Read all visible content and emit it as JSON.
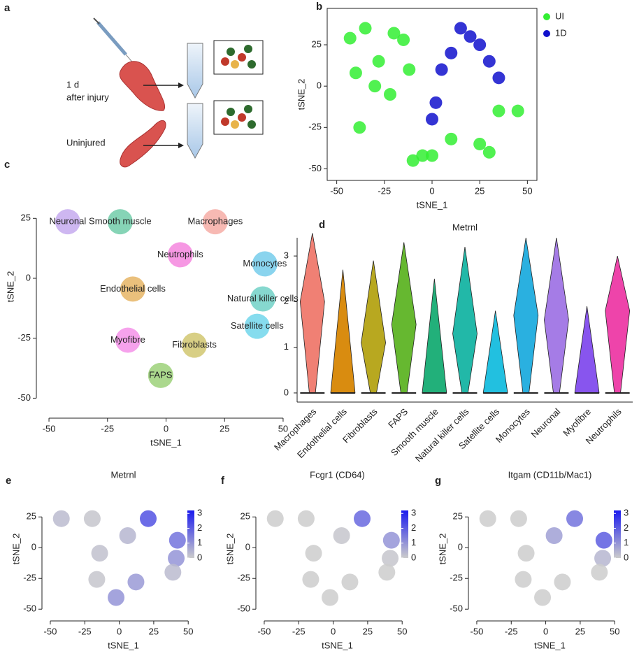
{
  "panel_a": {
    "label": "a",
    "injured_lines": [
      "1 d",
      "after injury"
    ],
    "uninjured": "Uninjured"
  },
  "chart_data": [
    {
      "type": "scatter",
      "panel": "b",
      "xlabel": "tSNE_1",
      "ylabel": "tSNE_2",
      "xlim": [
        -55,
        55
      ],
      "ylim": [
        -57,
        47
      ],
      "xticks": [
        -50,
        -25,
        0,
        25,
        50
      ],
      "yticks": [
        -50,
        -25,
        0,
        25
      ],
      "frame": true,
      "legend": "upper right",
      "series": [
        {
          "name": "UI",
          "color": "#33ee33",
          "x": [
            -40,
            -30,
            -22,
            -12,
            -35,
            -15,
            -43,
            -20,
            -5,
            0,
            10,
            25,
            -10,
            35,
            45,
            -38,
            30,
            -28
          ],
          "y": [
            8,
            0,
            -5,
            10,
            35,
            28,
            29,
            32,
            -42,
            -42,
            -32,
            -35,
            -45,
            -15,
            -15,
            -25,
            -40,
            15
          ]
        },
        {
          "name": "1D",
          "color": "#1010cc",
          "x": [
            15,
            25,
            30,
            10,
            0,
            35,
            5,
            20,
            2
          ],
          "y": [
            35,
            25,
            15,
            20,
            -20,
            5,
            10,
            30,
            -10
          ]
        }
      ]
    },
    {
      "type": "scatter",
      "panel": "c",
      "xlabel": "tSNE_1",
      "ylabel": "tSNE_2",
      "xlim": [
        -53,
        53
      ],
      "ylim": [
        -56,
        49
      ],
      "xticks": [
        -50,
        -25,
        0,
        25,
        50
      ],
      "yticks": [
        -50,
        -25,
        0,
        25
      ],
      "labels": [
        "Macrophages",
        "Neuronal",
        "Smooth muscle",
        "Neutrophils",
        "Monocytes",
        "Endothelial cells",
        "Natural killer cells",
        "Satellite cells",
        "Myofibre",
        "Fibroblasts",
        "FAPS"
      ],
      "x": [
        21,
        -42,
        -19.6,
        6.1,
        42.2,
        -14.2,
        41.3,
        38.9,
        -16.3,
        12.1,
        -2.3
      ],
      "y": [
        23.6,
        23.6,
        23.6,
        9.8,
        6,
        -4.5,
        -8.6,
        -20,
        -25.8,
        -27.9,
        -40.5
      ],
      "colors": [
        "#f08074",
        "#a57ce6",
        "#22b07a",
        "#ee44cc",
        "#2ab0e0",
        "#d98c10",
        "#22b8a8",
        "#22c0e0",
        "#ee55dd",
        "#b8a820",
        "#66b830"
      ]
    },
    {
      "type": "violin",
      "panel": "d",
      "title": "Metrnl",
      "ylim": [
        -0.2,
        3.4
      ],
      "yticks": [
        0,
        1,
        2,
        3
      ],
      "categories": [
        "Macrophages",
        "Endothelial cells",
        "Fibroblasts",
        "FAPS",
        "Smooth muscle",
        "Natural killer cells",
        "Satellite cells",
        "Monocytes",
        "Neuronal",
        "Myofibre",
        "Neutrophils"
      ],
      "values": [
        2.0,
        0,
        1.1,
        1.5,
        0,
        1.3,
        0,
        1.7,
        1.6,
        0,
        1.8
      ],
      "max": [
        3.5,
        2.7,
        2.9,
        3.3,
        2.5,
        3.2,
        1.8,
        3.4,
        3.4,
        1.9,
        3.0
      ],
      "colors": [
        "#f08074",
        "#d98c10",
        "#b8a820",
        "#66b830",
        "#22b07a",
        "#22b8a8",
        "#22c0e0",
        "#2ab0e0",
        "#a57ce6",
        "#8855ee",
        "#ee44aa"
      ]
    },
    {
      "type": "feature",
      "panel": "e",
      "title": "Metrnl",
      "xlabel": "tSNE_1",
      "ylabel": "tSNE_2",
      "xlim": [
        -52,
        58
      ],
      "ylim": [
        -55,
        53
      ],
      "xticks": [
        -50,
        -25,
        0,
        25,
        50
      ],
      "yticks": [
        -50,
        -25,
        0,
        25
      ],
      "colorbar_lim": [
        0,
        3.2
      ],
      "colorbar_ticks": [
        0,
        1,
        2,
        3
      ],
      "low_color": "#cccccc",
      "high_color": "#1a1aee",
      "values": [
        2.2,
        0.3,
        0.1,
        0.4,
        1.6,
        0.2,
        1.0,
        0.3,
        0.1,
        0.9,
        1.0
      ]
    },
    {
      "type": "feature",
      "panel": "f",
      "title": "Fcgr1 (CD64)",
      "xlabel": "tSNE_1",
      "ylabel": "tSNE_2",
      "xlim": [
        -52,
        58
      ],
      "ylim": [
        -55,
        53
      ],
      "xticks": [
        -50,
        -25,
        0,
        25,
        50
      ],
      "yticks": [
        -50,
        -25,
        0,
        25
      ],
      "colorbar_lim": [
        0,
        3.2
      ],
      "colorbar_ticks": [
        0,
        1,
        2,
        3
      ],
      "low_color": "#cccccc",
      "high_color": "#1a1aee",
      "values": [
        1.8,
        0,
        0,
        0.1,
        1.0,
        0,
        0.1,
        0,
        0,
        0,
        0
      ]
    },
    {
      "type": "feature",
      "panel": "g",
      "title": "Itgam (CD11b/Mac1)",
      "xlabel": "tSNE_1",
      "ylabel": "tSNE_2",
      "xlim": [
        -52,
        58
      ],
      "ylim": [
        -55,
        53
      ],
      "xticks": [
        -50,
        -25,
        0,
        25,
        50
      ],
      "yticks": [
        -50,
        -25,
        0,
        25
      ],
      "colorbar_lim": [
        0,
        3.2
      ],
      "colorbar_ticks": [
        0,
        1,
        2,
        3
      ],
      "low_color": "#cccccc",
      "high_color": "#1a1aee",
      "values": [
        1.6,
        0,
        0,
        0.8,
        2.0,
        0,
        0.4,
        0,
        0,
        0,
        0
      ]
    }
  ]
}
